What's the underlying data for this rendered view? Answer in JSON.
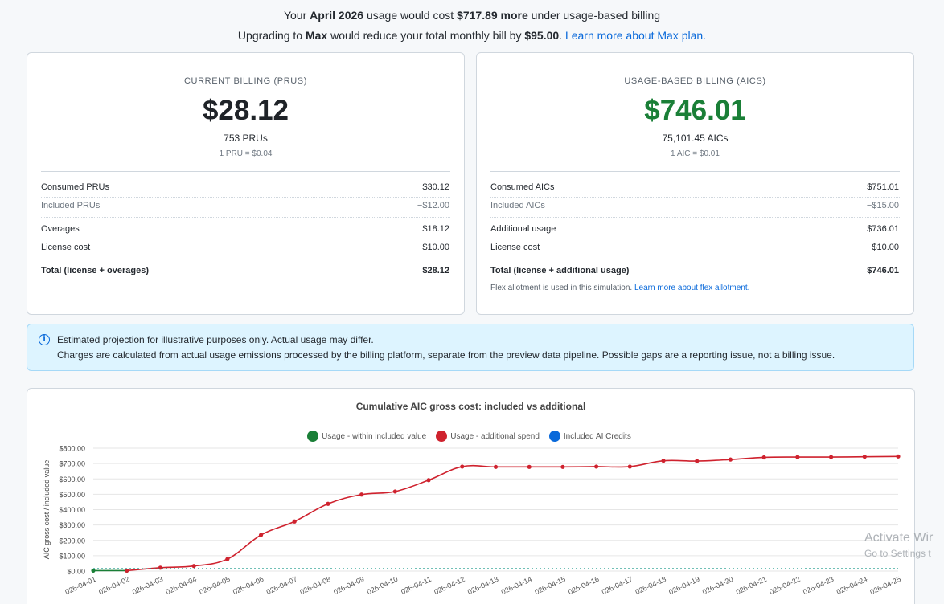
{
  "header": {
    "line1": {
      "pre": "Your ",
      "month": "April 2026",
      "mid": " usage would cost ",
      "amount": "$717.89 more",
      "post": " under usage-based billing"
    },
    "line2": {
      "pre": "Upgrading to ",
      "plan": "Max",
      "mid": " would reduce your total monthly bill by ",
      "amount": "$95.00",
      "post": ". ",
      "link": "Learn more about Max plan."
    }
  },
  "current": {
    "kicker": "CURRENT BILLING (PRUS)",
    "total": "$28.12",
    "units": "753 PRUs",
    "rate": "1 PRU = $0.04",
    "rows": [
      {
        "label": "Consumed PRUs",
        "value": "$30.12"
      },
      {
        "label": "Included PRUs",
        "value": "−$12.00"
      },
      {
        "label": "Overages",
        "value": "$18.12"
      },
      {
        "label": "License cost",
        "value": "$10.00"
      },
      {
        "label": "Total (license + overages)",
        "value": "$28.12"
      }
    ]
  },
  "usage": {
    "kicker": "USAGE-BASED BILLING (AICS)",
    "total": "$746.01",
    "units": "75,101.45 AICs",
    "rate": "1 AIC = $0.01",
    "rows": [
      {
        "label": "Consumed AICs",
        "value": "$751.01"
      },
      {
        "label": "Included AICs",
        "value": "−$15.00"
      },
      {
        "label": "Additional usage",
        "value": "$736.01"
      },
      {
        "label": "License cost",
        "value": "$10.00"
      },
      {
        "label": "Total (license + additional usage)",
        "value": "$746.01"
      }
    ],
    "note": "Flex allotment is used in this simulation. ",
    "note_link": "Learn more about flex allotment."
  },
  "info": {
    "icon": "info-icon",
    "line1": "Estimated projection for illustrative purposes only. Actual usage may differ.",
    "line2": "Charges are calculated from actual usage emissions processed by the billing platform, separate from the preview data pipeline. Possible gaps are a reporting issue, not a billing issue."
  },
  "watermark": {
    "line1": "Activate Wir",
    "line2": "Go to Settings t"
  },
  "chart_data": {
    "type": "line",
    "title": "Cumulative AIC gross cost: included vs additional",
    "ylabel": "AIC gross cost / included value",
    "xlabel": "",
    "ylim": [
      0,
      800
    ],
    "yticks": [
      "$0.00",
      "$100.00",
      "$200.00",
      "$300.00",
      "$400.00",
      "$500.00",
      "$600.00",
      "$700.00",
      "$800.00"
    ],
    "x": [
      "2026-04-01",
      "2026-04-02",
      "2026-04-03",
      "2026-04-04",
      "2026-04-05",
      "2026-04-06",
      "2026-04-07",
      "2026-04-08",
      "2026-04-09",
      "2026-04-10",
      "2026-04-11",
      "2026-04-12",
      "2026-04-13",
      "2026-04-14",
      "2026-04-15",
      "2026-04-16",
      "2026-04-17",
      "2026-04-18",
      "2026-04-19",
      "2026-04-20",
      "2026-04-21",
      "2026-04-22",
      "2026-04-23",
      "2026-04-24",
      "2026-04-25"
    ],
    "x_tick_labels": [
      "026-04-01",
      "026-04-02",
      "026-04-03",
      "026-04-04",
      "026-04-05",
      "026-04-06",
      "026-04-07",
      "026-04-08",
      "026-04-09",
      "026-04-10",
      "026-04-11",
      "026-04-12",
      "026-04-13",
      "026-04-14",
      "026-04-15",
      "026-04-16",
      "026-04-17",
      "026-04-18",
      "026-04-19",
      "026-04-20",
      "026-04-21",
      "026-04-22",
      "026-04-23",
      "026-04-24",
      "026-04-25"
    ],
    "grid": true,
    "legend_position": "top-center",
    "series": [
      {
        "name": "Usage - within included value",
        "color": "#1a7f37",
        "values": [
          3,
          3,
          null,
          null,
          null,
          null,
          null,
          null,
          null,
          null,
          null,
          null,
          null,
          null,
          null,
          null,
          null,
          null,
          null,
          null,
          null,
          null,
          null,
          null,
          null
        ]
      },
      {
        "name": "Usage - additional spend",
        "color": "#cf222e",
        "values": [
          null,
          3,
          22,
          33,
          78,
          235,
          323,
          438,
          498,
          518,
          592,
          680,
          678,
          678,
          678,
          680,
          680,
          718,
          716,
          726,
          740,
          742,
          742,
          744,
          746
        ]
      },
      {
        "name": "Included AI Credits",
        "color": "#0969da",
        "style": "dotted",
        "values": [
          15,
          15,
          15,
          15,
          15,
          15,
          15,
          15,
          15,
          15,
          15,
          15,
          15,
          15,
          15,
          15,
          15,
          15,
          15,
          15,
          15,
          15,
          15,
          15,
          15
        ]
      }
    ]
  }
}
